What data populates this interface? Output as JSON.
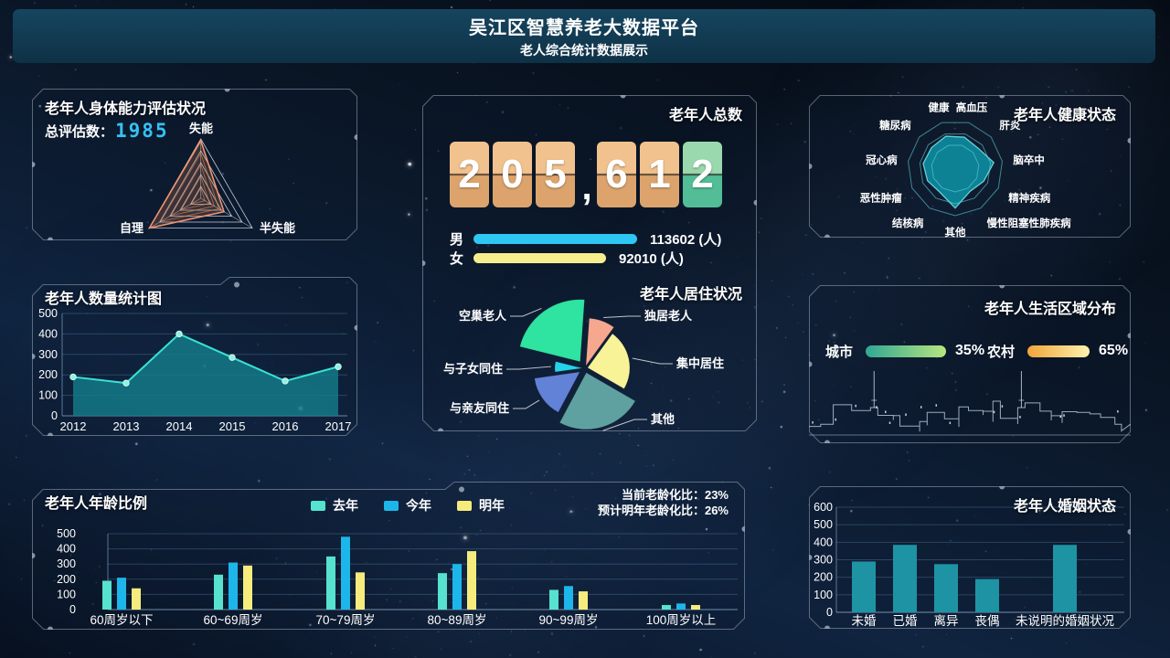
{
  "header": {
    "title": "吴江区智慧养老大数据平台",
    "subtitle": "老人综合统计数据展示"
  },
  "physical": {
    "title": "老年人身体能力评估状况",
    "total_label": "总评估数：",
    "total_value": "1985",
    "accent_color": "#35c1f5",
    "chart_data": {
      "type": "radar",
      "axes": [
        "失能",
        "半失能",
        "自理"
      ],
      "values": [
        0.97,
        0.45,
        1.0
      ],
      "levels": 5,
      "line_color": "#f0936e",
      "fill_color": "rgba(205,120,75,0.25)"
    }
  },
  "count_trend": {
    "title": "老年人数量统计图",
    "chart_data": {
      "type": "area",
      "x": [
        "2012",
        "2013",
        "2014",
        "2015",
        "2016",
        "2017"
      ],
      "values": [
        190,
        160,
        400,
        285,
        170,
        240
      ],
      "ylim": [
        0,
        500
      ],
      "yticks": [
        0,
        100,
        200,
        300,
        400,
        500
      ],
      "line_color": "#38e2d2",
      "fill_color": "rgba(20,124,138,0.82)"
    }
  },
  "total": {
    "title": "老年人总数",
    "digits": [
      "2",
      "0",
      "5",
      ",",
      "6",
      "1",
      "2"
    ],
    "card_colors": {
      "tan": [
        "#f1c28e",
        "#dca46c"
      ],
      "green": [
        "#9ad9ae",
        "#52bd97"
      ]
    },
    "male_label": "男",
    "male_value": 113602,
    "male_value_text": "113602 (人)",
    "male_color": "#2ec6f2",
    "female_label": "女",
    "female_value": 92010,
    "female_value_text": "92010 (人)",
    "female_color": "#f6ee8d"
  },
  "living": {
    "title": "老年人居住状况",
    "chart_data": {
      "type": "pie",
      "start_angle": 86,
      "slices": [
        {
          "label": "空巢老人",
          "span": 80,
          "radius": 68,
          "offset": 9,
          "color": "#2fe3a0"
        },
        {
          "label": "与子女同住",
          "span": 22,
          "radius": 30,
          "offset": 3,
          "color": "#25d4e8"
        },
        {
          "label": "与亲友同住",
          "span": 54,
          "radius": 50,
          "offset": 7,
          "color": "#6282d8"
        },
        {
          "label": "其他",
          "span": 88,
          "radius": 62,
          "offset": 5,
          "color": "#5fa1a0"
        },
        {
          "label": "集中居住",
          "span": 84,
          "radius": 46,
          "offset": 3,
          "color": "#f9f398"
        },
        {
          "label": "独居老人",
          "span": 32,
          "radius": 52,
          "offset": 3,
          "color": "#f5a88e"
        }
      ]
    }
  },
  "health": {
    "title": "老年人健康状态",
    "chart_data": {
      "type": "radar",
      "axes": [
        "健康",
        "高血压",
        "肝炎",
        "脑卒中",
        "精神疾病",
        "慢性阻塞性肺疾病",
        "其他",
        "结核病",
        "恶性肿瘤",
        "冠心病",
        "糖尿病"
      ],
      "values": [
        0.7,
        0.68,
        0.64,
        0.82,
        0.66,
        0.58,
        0.84,
        0.6,
        0.64,
        0.68,
        0.66
      ],
      "rings": [
        1,
        0.75,
        0.5
      ],
      "fill_color": "rgba(14,152,172,0.82)",
      "line_color": "rgba(120,230,235,0.85)"
    }
  },
  "region": {
    "title": "老年人生活区域分布",
    "items": [
      {
        "label": "城市",
        "pct": "35%",
        "value": 35,
        "colors": [
          "#2fa894",
          "#b8e57f"
        ]
      },
      {
        "label": "农村",
        "pct": "65%",
        "value": 65,
        "colors": [
          "#f0a53a",
          "#fdf3ae"
        ]
      }
    ]
  },
  "age": {
    "title": "老年人年龄比例",
    "aging_current": "当前老龄化比：23%",
    "aging_next": "预计明年老龄化比：26%",
    "chart_data": {
      "type": "bar",
      "categories": [
        "60周岁以下",
        "60~69周岁",
        "70~79周岁",
        "80~89周岁",
        "90~99周岁",
        "100周岁以上"
      ],
      "series": [
        {
          "name": "去年",
          "color": "#56e2cf",
          "values": [
            190,
            230,
            350,
            240,
            130,
            30
          ]
        },
        {
          "name": "今年",
          "color": "#1db6ea",
          "values": [
            210,
            310,
            480,
            300,
            155,
            40
          ]
        },
        {
          "name": "明年",
          "color": "#f6ec7d",
          "values": [
            140,
            290,
            245,
            385,
            120,
            30
          ]
        }
      ],
      "ylim": [
        0,
        500
      ],
      "yticks": [
        0,
        100,
        200,
        300,
        400,
        500
      ]
    }
  },
  "marriage": {
    "title": "老年人婚姻状态",
    "chart_data": {
      "type": "bar",
      "categories": [
        "未婚",
        "已婚",
        "离异",
        "丧偶",
        "未说明的婚姻状况"
      ],
      "values": [
        290,
        385,
        275,
        190,
        385
      ],
      "bar_color": "#1e93a4",
      "ylim": [
        0,
        600
      ],
      "yticks": [
        0,
        100,
        200,
        300,
        400,
        500,
        600
      ]
    }
  }
}
